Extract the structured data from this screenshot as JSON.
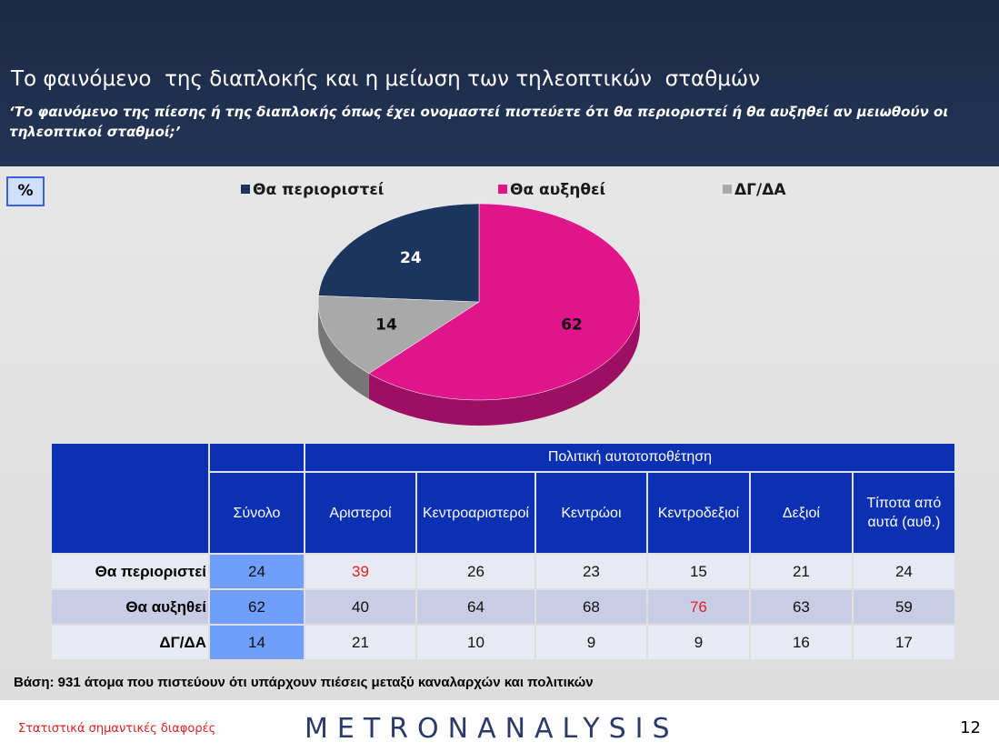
{
  "header": {
    "title": "Το φαινόμενο  της διαπλοκής και η μείωση των τηλεοπτικών  σταθμών",
    "subtitle": "‘Το φαινόμενο της πίεσης ή της διαπλοκής όπως έχει ονομαστεί πιστεύετε ότι θα περιοριστεί ή θα αυξηθεί αν μειωθούν οι τηλεοπτικοί σταθμοί;’"
  },
  "unit_badge": "%",
  "chart_data": {
    "type": "pie",
    "categories": [
      "Θα περιοριστεί",
      "Θα αυξηθεί",
      "ΔΓ/ΔΑ"
    ],
    "values": [
      24,
      62,
      14
    ],
    "colors": [
      "#1b355f",
      "#e0158c",
      "#a9a9a9"
    ],
    "legend": "top"
  },
  "table": {
    "group_header": "Πολιτική αυτοτοποθέτηση",
    "columns": [
      "Σύνολο",
      "Αριστεροί",
      "Κεντροαριστεροί",
      "Κεντρώοι",
      "Κεντροδεξιοί",
      "Δεξιοί",
      "Τίποτα από αυτά (αυθ.)"
    ],
    "rows": [
      {
        "label": "Θα περιοριστεί",
        "values": [
          24,
          39,
          26,
          23,
          15,
          21,
          24
        ],
        "significant": [
          false,
          true,
          false,
          false,
          false,
          false,
          false
        ]
      },
      {
        "label": "Θα αυξηθεί",
        "values": [
          62,
          40,
          64,
          68,
          76,
          63,
          59
        ],
        "significant": [
          false,
          false,
          false,
          false,
          true,
          false,
          false
        ]
      },
      {
        "label": "ΔΓ/ΔΑ",
        "values": [
          14,
          21,
          10,
          9,
          9,
          16,
          17
        ],
        "significant": [
          false,
          false,
          false,
          false,
          false,
          false,
          false
        ]
      }
    ]
  },
  "base_note": "Βάση: 931 άτομα που πιστεύουν ότι υπάρχουν πιέσεις μεταξύ καναλαρχών και πολιτικών",
  "footer": {
    "significance_note": "Στατιστικά σημαντικές διαφορές",
    "logo": "METRONANALYSIS",
    "page_number": 12
  }
}
